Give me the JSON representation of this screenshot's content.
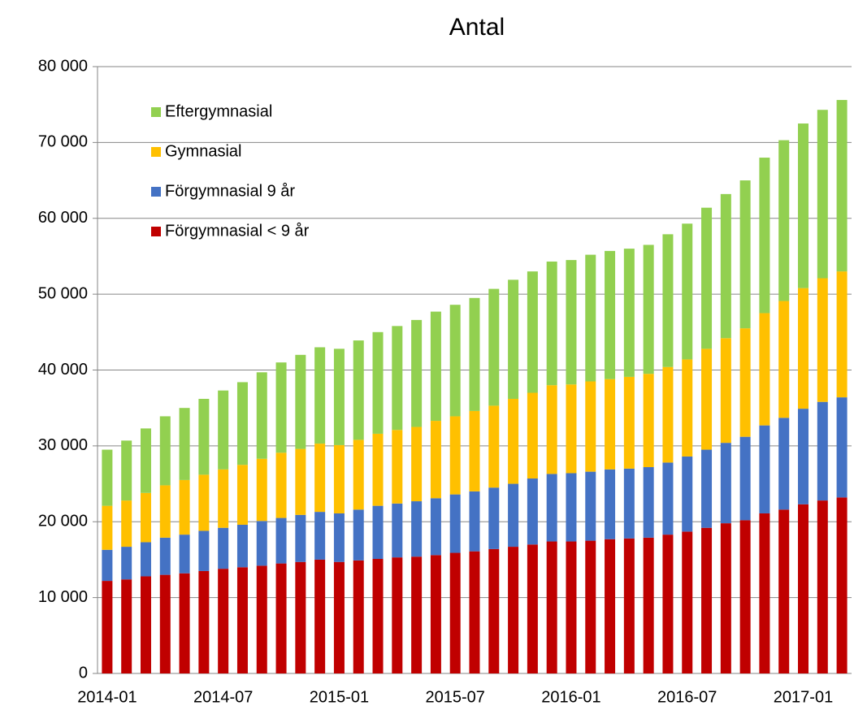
{
  "chart_data": {
    "type": "stacked_bar",
    "title": "Antal",
    "categories": [
      "2014-01",
      null,
      null,
      null,
      null,
      null,
      "2014-07",
      null,
      null,
      null,
      null,
      null,
      "2015-01",
      null,
      null,
      null,
      null,
      null,
      "2015-07",
      null,
      null,
      null,
      null,
      null,
      "2016-01",
      null,
      null,
      null,
      null,
      null,
      "2016-07",
      null,
      null,
      null,
      null,
      null,
      "2017-01",
      null,
      null
    ],
    "series": [
      {
        "name": "Förgymnasial < 9 år",
        "color": "#c00000",
        "values": [
          12200,
          12400,
          12800,
          13000,
          13200,
          13500,
          13800,
          14000,
          14200,
          14500,
          14700,
          15000,
          14700,
          14900,
          15100,
          15300,
          15400,
          15600,
          15900,
          16100,
          16400,
          16700,
          17000,
          17400,
          17400,
          17500,
          17700,
          17800,
          17900,
          18300,
          18700,
          19200,
          19800,
          20200,
          21100,
          21600,
          22300,
          22800,
          23200
        ]
      },
      {
        "name": "Förgymnasial 9 år",
        "color": "#4472c4",
        "values": [
          4100,
          4300,
          4500,
          4900,
          5100,
          5300,
          5400,
          5600,
          5900,
          6000,
          6200,
          6300,
          6400,
          6700,
          7000,
          7100,
          7300,
          7500,
          7700,
          7900,
          8100,
          8300,
          8700,
          8900,
          9000,
          9100,
          9200,
          9200,
          9300,
          9500,
          9900,
          10300,
          10600,
          11000,
          11600,
          12100,
          12600,
          13000,
          13200
        ]
      },
      {
        "name": "Gymnasial",
        "color": "#ffc000",
        "values": [
          5800,
          6100,
          6500,
          6900,
          7200,
          7400,
          7700,
          7900,
          8200,
          8600,
          8700,
          9000,
          9000,
          9200,
          9500,
          9700,
          9800,
          10200,
          10300,
          10600,
          10800,
          11200,
          11300,
          11700,
          11700,
          11900,
          11900,
          12100,
          12300,
          12600,
          12800,
          13300,
          13800,
          14300,
          14800,
          15400,
          15900,
          16300,
          16600
        ]
      },
      {
        "name": "Eftergymnasial",
        "color": "#92d050",
        "values": [
          7400,
          7900,
          8500,
          9100,
          9500,
          10000,
          10400,
          10900,
          11400,
          11900,
          12400,
          12700,
          12700,
          13100,
          13400,
          13700,
          14100,
          14400,
          14700,
          14900,
          15400,
          15700,
          16000,
          16300,
          16400,
          16700,
          16900,
          16900,
          17000,
          17500,
          17900,
          18600,
          19000,
          19500,
          20500,
          21200,
          21700,
          22200,
          22600
        ]
      }
    ],
    "ylim": [
      0,
      80000
    ],
    "yticks": [
      0,
      {
        "value": 10000,
        "label": "10 000"
      },
      {
        "value": 20000,
        "label": "20 000"
      },
      {
        "value": 30000,
        "label": "30 000"
      },
      {
        "value": 40000,
        "label": "40 000"
      },
      {
        "value": 50000,
        "label": "50 000"
      },
      {
        "value": 60000,
        "label": "60 000"
      },
      {
        "value": 70000,
        "label": "70 000"
      },
      {
        "value": 80000,
        "label": "80 000"
      }
    ],
    "grid": true,
    "legend": "upper left"
  }
}
